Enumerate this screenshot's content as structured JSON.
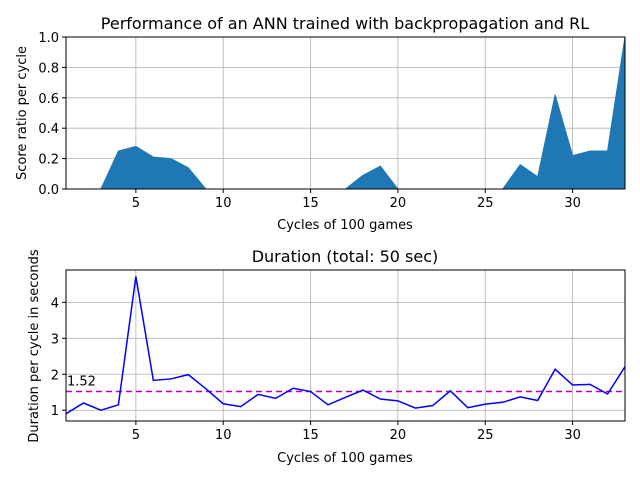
{
  "chart_data": [
    {
      "type": "area",
      "title": "Performance of an ANN trained with backpropagation and RL",
      "xlabel": "Cycles of 100 games",
      "ylabel": "Score ratio per cycle",
      "xlim": [
        1,
        33
      ],
      "ylim": [
        0,
        1.0
      ],
      "grid": true,
      "x_ticks": [
        5,
        10,
        15,
        20,
        25,
        30
      ],
      "y_ticks": [
        0.0,
        0.2,
        0.4,
        0.6,
        0.8,
        1.0
      ],
      "x_tick_labels": [
        "5",
        "10",
        "15",
        "20",
        "25",
        "30"
      ],
      "y_tick_labels": [
        "0.0",
        "0.2",
        "0.4",
        "0.6",
        "0.8",
        "1.0"
      ],
      "color": "#1f77b4",
      "series": [
        {
          "x": [
            1,
            2,
            3,
            4,
            5,
            6,
            7,
            8,
            9,
            10,
            11,
            12,
            13,
            14,
            15,
            16,
            17,
            18,
            19,
            20,
            21,
            22,
            23,
            24,
            25,
            26,
            27,
            28,
            29,
            30,
            31,
            32,
            33
          ],
          "values": [
            0,
            0,
            0,
            0.25,
            0.28,
            0.21,
            0.2,
            0.14,
            0,
            0,
            0,
            0,
            0,
            0,
            0,
            0,
            0,
            0.09,
            0.15,
            0,
            0,
            0,
            0,
            0,
            0,
            0,
            0.16,
            0.08,
            0.62,
            0.22,
            0.25,
            0.25,
            1.0
          ]
        }
      ]
    },
    {
      "type": "line",
      "title": "Duration (total: 50 sec)",
      "xlabel": "Cycles of 100 games",
      "ylabel": "Duration per cycle in seconds",
      "xlim": [
        1,
        33
      ],
      "ylim": [
        0.7,
        4.9
      ],
      "grid": true,
      "x_ticks": [
        5,
        10,
        15,
        20,
        25,
        30
      ],
      "y_ticks": [
        1,
        2,
        3,
        4
      ],
      "x_tick_labels": [
        "5",
        "10",
        "15",
        "20",
        "25",
        "30"
      ],
      "y_tick_labels": [
        "1",
        "2",
        "3",
        "4"
      ],
      "color": "#0000ff",
      "series": [
        {
          "x": [
            1,
            2,
            3,
            4,
            5,
            6,
            7,
            8,
            9,
            10,
            11,
            12,
            13,
            14,
            15,
            16,
            17,
            18,
            19,
            20,
            21,
            22,
            23,
            24,
            25,
            26,
            27,
            28,
            29,
            30,
            31,
            32,
            33
          ],
          "values": [
            0.9,
            1.2,
            1.0,
            1.15,
            4.72,
            1.83,
            1.87,
            1.99,
            1.6,
            1.18,
            1.1,
            1.44,
            1.33,
            1.61,
            1.52,
            1.15,
            1.36,
            1.56,
            1.31,
            1.26,
            1.06,
            1.13,
            1.54,
            1.07,
            1.17,
            1.22,
            1.37,
            1.27,
            2.14,
            1.7,
            1.72,
            1.45,
            2.21
          ]
        }
      ],
      "mean_line": {
        "value": 1.52,
        "label": "1.52",
        "color": "#bf00bf",
        "style": "dashed"
      }
    }
  ]
}
